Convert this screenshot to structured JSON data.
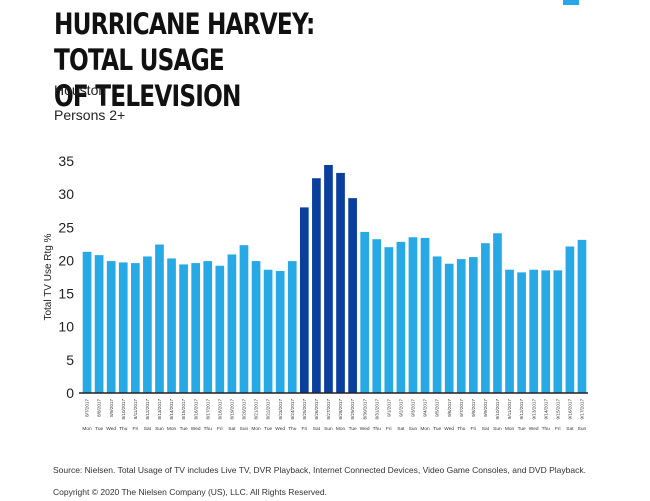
{
  "header": {
    "title_line1": "HURRICANE HARVEY: TOTAL USAGE",
    "title_line2": "OF TELEVISION",
    "market": "Houston",
    "demo": "Persons 2+"
  },
  "footer": {
    "source": "Source: Nielsen. Total Usage of TV includes Live TV, DVR Playback, Internet Connected Devices, Video Game Consoles, and DVD Playback.",
    "copyright": "Copyright © 2020 The Nielsen Company (US), LLC. All Rights Reserved."
  },
  "colors": {
    "normal": "#27a9e6",
    "hurricane": "#0b3f9e",
    "corner": "#2aa7e8"
  },
  "chart_data": {
    "type": "bar",
    "title": "Hurricane Harvey: Total Usage of Television",
    "xlabel": "",
    "ylabel": "Total TV Use Rtg %",
    "ylim": [
      0,
      35
    ],
    "yticks": [
      0,
      5,
      10,
      15,
      20,
      25,
      30,
      35
    ],
    "dates": [
      "8/7/2017",
      "8/8/2017",
      "8/9/2017",
      "8/10/2017",
      "8/11/2017",
      "8/12/2017",
      "8/13/2017",
      "8/14/2017",
      "8/15/2017",
      "8/16/2017",
      "8/17/2017",
      "8/18/2017",
      "8/19/2017",
      "8/20/2017",
      "8/21/2017",
      "8/22/2017",
      "8/23/2017",
      "8/24/2017",
      "8/25/2017",
      "8/26/2017",
      "8/27/2017",
      "8/28/2017",
      "8/29/2017",
      "8/30/2017",
      "8/31/2017",
      "9/1/2017",
      "9/2/2017",
      "9/3/2017",
      "9/4/2017",
      "9/5/2017",
      "9/6/2017",
      "9/7/2017",
      "9/8/2017",
      "9/9/2017",
      "9/10/2017",
      "9/11/2017",
      "9/12/2017",
      "9/13/2017",
      "9/14/2017",
      "9/15/2017",
      "9/16/2017",
      "9/17/2017"
    ],
    "weekdays": [
      "Mon",
      "Tue",
      "Wed",
      "Thu",
      "Fri",
      "Sat",
      "Sun",
      "Mon",
      "Tue",
      "Wed",
      "Thu",
      "Fri",
      "Sat",
      "Sun",
      "Mon",
      "Tue",
      "Wed",
      "Thu",
      "Fri",
      "Sat",
      "Sun",
      "Mon",
      "Tue",
      "Wed",
      "Thu",
      "Fri",
      "Sat",
      "Sun",
      "Mon",
      "Tue",
      "Wed",
      "Thu",
      "Fri",
      "Sat",
      "Sun",
      "Mon",
      "Tue",
      "Wed",
      "Thu",
      "Fri",
      "Sat",
      "Sun"
    ],
    "values": [
      21.3,
      20.8,
      19.9,
      19.7,
      19.6,
      20.6,
      22.4,
      20.3,
      19.4,
      19.6,
      19.9,
      19.2,
      20.9,
      22.3,
      19.9,
      18.6,
      18.4,
      19.9,
      28.0,
      32.4,
      34.4,
      33.2,
      29.4,
      24.3,
      23.2,
      22.0,
      22.8,
      23.5,
      23.4,
      20.6,
      19.5,
      20.2,
      20.5,
      22.6,
      24.1,
      18.6,
      18.2,
      18.6,
      18.5,
      18.5,
      22.1,
      23.1
    ],
    "highlight": [
      18,
      19,
      20,
      21,
      22
    ]
  }
}
